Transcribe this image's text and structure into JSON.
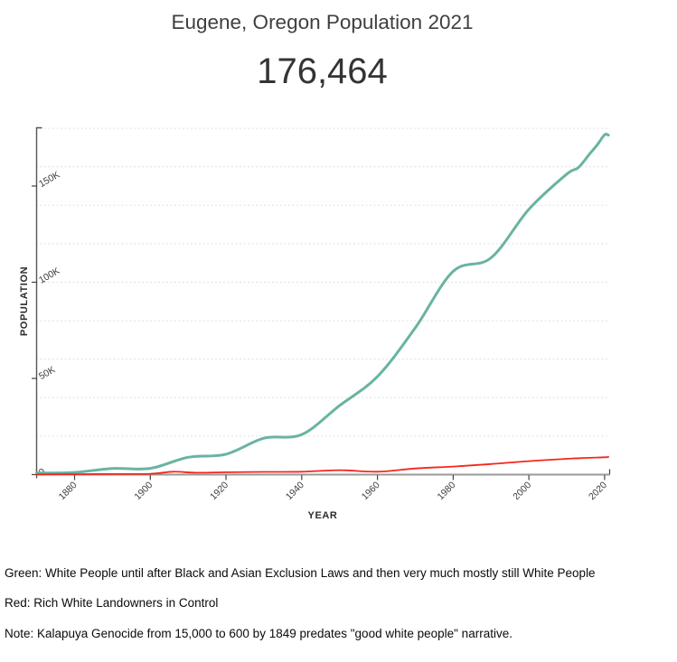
{
  "page": {
    "title": "Eugene, Oregon Population 2021",
    "headline_value": "176,464"
  },
  "chart_data": {
    "type": "line",
    "title": "Eugene, Oregon Population 2021",
    "headline_value": "176,464",
    "xlabel": "YEAR",
    "ylabel": "POPULATION",
    "xlim": [
      1870,
      2021.5
    ],
    "ylim": [
      0,
      180000
    ],
    "x_ticks": [
      1880,
      1900,
      1920,
      1940,
      1960,
      1980,
      2000,
      2020
    ],
    "y_ticks": [
      {
        "value": 0,
        "label": "0"
      },
      {
        "value": 50000,
        "label": "50K"
      },
      {
        "value": 100000,
        "label": "100K"
      },
      {
        "value": 150000,
        "label": "150K"
      }
    ],
    "grid_interval": 20000,
    "grid_style": "horizontal dotted",
    "legend_position": "none",
    "series": [
      {
        "name": "green",
        "color": "#69b3a2",
        "width": 3,
        "points": [
          [
            1870,
            861
          ],
          [
            1880,
            1117
          ],
          [
            1890,
            3203
          ],
          [
            1900,
            3236
          ],
          [
            1910,
            9009
          ],
          [
            1920,
            10593
          ],
          [
            1930,
            18901
          ],
          [
            1940,
            20838
          ],
          [
            1950,
            35879
          ],
          [
            1960,
            50977
          ],
          [
            1970,
            76346
          ],
          [
            1980,
            105664
          ],
          [
            1990,
            112669
          ],
          [
            2000,
            137893
          ],
          [
            2010,
            156185
          ],
          [
            2013,
            159500
          ],
          [
            2016,
            166575
          ],
          [
            2018,
            171245
          ],
          [
            2020,
            176654
          ],
          [
            2021,
            176464
          ]
        ]
      },
      {
        "name": "red",
        "color": "#f4271d",
        "width": 1.8,
        "points": [
          [
            1870,
            100
          ],
          [
            1880,
            200
          ],
          [
            1890,
            300
          ],
          [
            1900,
            400
          ],
          [
            1906,
            1500
          ],
          [
            1912,
            1000
          ],
          [
            1920,
            1200
          ],
          [
            1930,
            1400
          ],
          [
            1940,
            1500
          ],
          [
            1950,
            2300
          ],
          [
            1960,
            1500
          ],
          [
            1970,
            3200
          ],
          [
            1980,
            4200
          ],
          [
            1990,
            5500
          ],
          [
            2000,
            7000
          ],
          [
            2010,
            8200
          ],
          [
            2015,
            8700
          ],
          [
            2020,
            9000
          ],
          [
            2021,
            9200
          ]
        ]
      }
    ]
  },
  "notes": {
    "green": "Green: White People until after Black and Asian Exclusion Laws and then very much mostly still White People",
    "red": "Red: Rich White Landowners in Control",
    "kalapuya": "Note: Kalapuya Genocide from 15,000 to 600 by 1849 predates \"good white people\" narrative."
  },
  "colors": {
    "green_line": "#69b3a2",
    "red_line": "#f4271d",
    "grid": "#e0e0e0",
    "axis_domain": "#999999",
    "tick": "#444444",
    "text": "#333333"
  }
}
